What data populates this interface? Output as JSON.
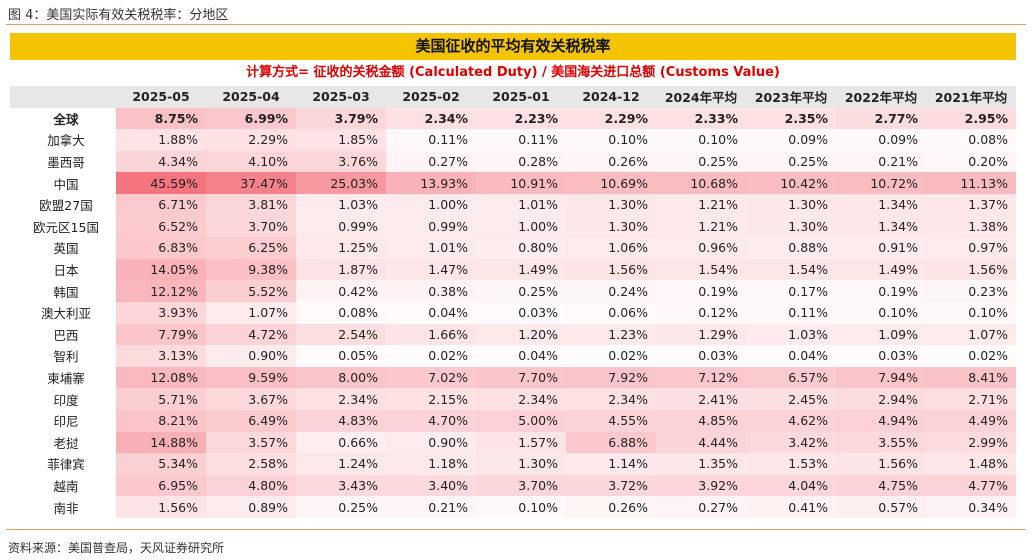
{
  "figure_title": "图 4：美国实际有效关税税率：分地区",
  "banner": "美国征收的平均有效关税税率",
  "formula": "计算方式= 征收的关税金额 (Calculated Duty) /  美国海关进口总额 (Customs Value)",
  "source": "资料来源：美国普查局，天风证券研究所",
  "colors": {
    "banner": "#f5c400",
    "formula": "#e00000",
    "header_bg": "#e7e7e7",
    "heat_max": "#f36d78",
    "rule": "#e0a060"
  },
  "chart_data": {
    "type": "table",
    "columns": [
      "",
      "2025-05",
      "2025-04",
      "2025-03",
      "2025-02",
      "2025-01",
      "2024-12",
      "2024年平均",
      "2023年平均",
      "2022年平均",
      "2021年平均"
    ],
    "rows": [
      {
        "name": "全球",
        "values": [
          "8.75%",
          "6.99%",
          "3.79%",
          "2.34%",
          "2.23%",
          "2.29%",
          "2.33%",
          "2.35%",
          "2.77%",
          "2.95%"
        ]
      },
      {
        "name": "加拿大",
        "values": [
          "1.88%",
          "2.29%",
          "1.85%",
          "0.11%",
          "0.11%",
          "0.10%",
          "0.10%",
          "0.09%",
          "0.09%",
          "0.08%"
        ]
      },
      {
        "name": "墨西哥",
        "values": [
          "4.34%",
          "4.10%",
          "3.76%",
          "0.27%",
          "0.28%",
          "0.26%",
          "0.25%",
          "0.25%",
          "0.21%",
          "0.20%"
        ]
      },
      {
        "name": "中国",
        "values": [
          "45.59%",
          "37.47%",
          "25.03%",
          "13.93%",
          "10.91%",
          "10.69%",
          "10.68%",
          "10.42%",
          "10.72%",
          "11.13%"
        ]
      },
      {
        "name": "欧盟27国",
        "values": [
          "6.71%",
          "3.81%",
          "1.03%",
          "1.00%",
          "1.01%",
          "1.30%",
          "1.21%",
          "1.30%",
          "1.34%",
          "1.37%"
        ]
      },
      {
        "name": "欧元区15国",
        "values": [
          "6.52%",
          "3.70%",
          "0.99%",
          "0.99%",
          "1.00%",
          "1.30%",
          "1.21%",
          "1.30%",
          "1.34%",
          "1.38%"
        ]
      },
      {
        "name": "英国",
        "values": [
          "6.83%",
          "6.25%",
          "1.25%",
          "1.01%",
          "0.80%",
          "1.06%",
          "0.96%",
          "0.88%",
          "0.91%",
          "0.97%"
        ]
      },
      {
        "name": "日本",
        "values": [
          "14.05%",
          "9.38%",
          "1.87%",
          "1.47%",
          "1.49%",
          "1.56%",
          "1.54%",
          "1.54%",
          "1.49%",
          "1.56%"
        ]
      },
      {
        "name": "韩国",
        "values": [
          "12.12%",
          "5.52%",
          "0.42%",
          "0.38%",
          "0.25%",
          "0.24%",
          "0.19%",
          "0.17%",
          "0.19%",
          "0.23%"
        ]
      },
      {
        "name": "澳大利亚",
        "values": [
          "3.93%",
          "1.07%",
          "0.08%",
          "0.04%",
          "0.03%",
          "0.06%",
          "0.12%",
          "0.11%",
          "0.10%",
          "0.10%"
        ]
      },
      {
        "name": "巴西",
        "values": [
          "7.79%",
          "4.72%",
          "2.54%",
          "1.66%",
          "1.20%",
          "1.23%",
          "1.29%",
          "1.03%",
          "1.09%",
          "1.07%"
        ]
      },
      {
        "name": "智利",
        "values": [
          "3.13%",
          "0.90%",
          "0.05%",
          "0.02%",
          "0.04%",
          "0.02%",
          "0.03%",
          "0.04%",
          "0.03%",
          "0.02%"
        ]
      },
      {
        "name": "柬埔寨",
        "values": [
          "12.08%",
          "9.59%",
          "8.00%",
          "7.02%",
          "7.70%",
          "7.92%",
          "7.12%",
          "6.57%",
          "7.94%",
          "8.41%"
        ]
      },
      {
        "name": "印度",
        "values": [
          "5.71%",
          "3.67%",
          "2.34%",
          "2.15%",
          "2.34%",
          "2.34%",
          "2.41%",
          "2.45%",
          "2.94%",
          "2.71%"
        ]
      },
      {
        "name": "印尼",
        "values": [
          "8.21%",
          "6.49%",
          "4.83%",
          "4.70%",
          "5.00%",
          "4.55%",
          "4.85%",
          "4.62%",
          "4.94%",
          "4.49%"
        ]
      },
      {
        "name": "老挝",
        "values": [
          "14.88%",
          "3.57%",
          "0.66%",
          "0.90%",
          "1.57%",
          "6.88%",
          "4.44%",
          "3.42%",
          "3.55%",
          "2.99%"
        ]
      },
      {
        "name": "菲律宾",
        "values": [
          "5.34%",
          "2.58%",
          "1.24%",
          "1.18%",
          "1.30%",
          "1.14%",
          "1.35%",
          "1.53%",
          "1.56%",
          "1.48%"
        ]
      },
      {
        "name": "越南",
        "values": [
          "6.95%",
          "4.80%",
          "3.43%",
          "3.40%",
          "3.70%",
          "3.72%",
          "3.92%",
          "4.04%",
          "4.75%",
          "4.77%"
        ]
      },
      {
        "name": "南非",
        "values": [
          "1.56%",
          "0.89%",
          "0.25%",
          "0.21%",
          "0.10%",
          "0.26%",
          "0.27%",
          "0.41%",
          "0.57%",
          "0.34%"
        ]
      }
    ]
  }
}
